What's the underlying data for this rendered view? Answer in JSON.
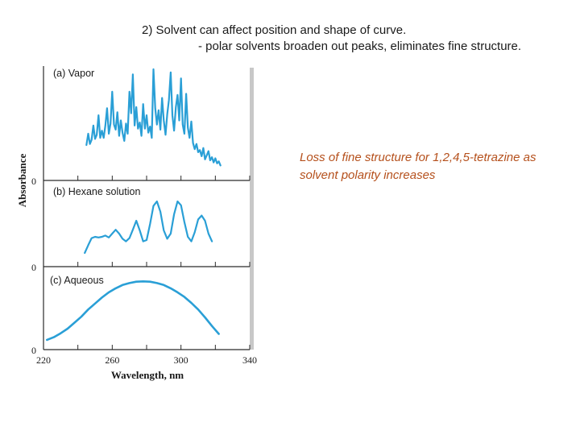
{
  "heading": {
    "line1": "2) Solvent can affect position and shape of curve.",
    "line2": "- polar solvents broaden out peaks, eliminates fine structure."
  },
  "note": "Loss of fine structure for 1,2,4,5-tetrazine as solvent polarity increases",
  "colors": {
    "curve": "#2a9fd6",
    "note": "#b5501c",
    "axis": "#2b2b2b"
  },
  "chart_data": {
    "type": "line",
    "xlabel": "Wavelength, nm",
    "ylabel": "Absorbance",
    "xlim": [
      220,
      340
    ],
    "x_ticks": [
      220,
      260,
      300,
      340
    ],
    "x_minor_ticks": [
      240,
      280,
      320
    ],
    "y_zero_label": "0",
    "series": [
      {
        "name": "(a) Vapor",
        "ylim": [
          0,
          1
        ],
        "points": [
          [
            245,
            0.26
          ],
          [
            246,
            0.37
          ],
          [
            247,
            0.27
          ],
          [
            248,
            0.31
          ],
          [
            249,
            0.45
          ],
          [
            250,
            0.32
          ],
          [
            251,
            0.36
          ],
          [
            252,
            0.55
          ],
          [
            253,
            0.33
          ],
          [
            254,
            0.4
          ],
          [
            255,
            0.33
          ],
          [
            256,
            0.45
          ],
          [
            257,
            0.62
          ],
          [
            258,
            0.37
          ],
          [
            259,
            0.47
          ],
          [
            260,
            0.78
          ],
          [
            261,
            0.46
          ],
          [
            262,
            0.41
          ],
          [
            263,
            0.58
          ],
          [
            264,
            0.35
          ],
          [
            265,
            0.5
          ],
          [
            266,
            0.38
          ],
          [
            267,
            0.3
          ],
          [
            268,
            0.47
          ],
          [
            269,
            0.37
          ],
          [
            270,
            0.78
          ],
          [
            271,
            0.57
          ],
          [
            272,
            0.95
          ],
          [
            273,
            0.45
          ],
          [
            274,
            0.63
          ],
          [
            275,
            0.42
          ],
          [
            276,
            0.48
          ],
          [
            277,
            0.35
          ],
          [
            278,
            0.66
          ],
          [
            279,
            0.42
          ],
          [
            280,
            0.55
          ],
          [
            281,
            0.38
          ],
          [
            282,
            0.44
          ],
          [
            283,
            0.33
          ],
          [
            284,
            1.0
          ],
          [
            285,
            0.62
          ],
          [
            286,
            0.46
          ],
          [
            287,
            0.6
          ],
          [
            288,
            0.41
          ],
          [
            289,
            0.72
          ],
          [
            290,
            0.5
          ],
          [
            291,
            0.36
          ],
          [
            292,
            0.56
          ],
          [
            293,
            0.7
          ],
          [
            294,
            0.97
          ],
          [
            295,
            0.55
          ],
          [
            296,
            0.4
          ],
          [
            297,
            0.63
          ],
          [
            298,
            0.75
          ],
          [
            299,
            0.5
          ],
          [
            300,
            0.91
          ],
          [
            301,
            0.46
          ],
          [
            302,
            0.37
          ],
          [
            303,
            0.76
          ],
          [
            304,
            0.43
          ],
          [
            305,
            0.33
          ],
          [
            306,
            0.49
          ],
          [
            307,
            0.28
          ],
          [
            308,
            0.22
          ],
          [
            309,
            0.27
          ],
          [
            310,
            0.19
          ],
          [
            311,
            0.21
          ],
          [
            312,
            0.15
          ],
          [
            313,
            0.23
          ],
          [
            314,
            0.12
          ],
          [
            315,
            0.16
          ],
          [
            316,
            0.2
          ],
          [
            317,
            0.11
          ],
          [
            318,
            0.14
          ],
          [
            319,
            0.09
          ],
          [
            320,
            0.13
          ],
          [
            321,
            0.08
          ],
          [
            322,
            0.1
          ],
          [
            323,
            0.06
          ]
        ]
      },
      {
        "name": "(b) Hexane solution",
        "ylim": [
          0,
          1
        ],
        "points": [
          [
            244,
            0.1
          ],
          [
            246,
            0.22
          ],
          [
            248,
            0.33
          ],
          [
            250,
            0.35
          ],
          [
            252,
            0.34
          ],
          [
            254,
            0.35
          ],
          [
            256,
            0.37
          ],
          [
            258,
            0.34
          ],
          [
            260,
            0.4
          ],
          [
            262,
            0.46
          ],
          [
            264,
            0.4
          ],
          [
            266,
            0.32
          ],
          [
            268,
            0.28
          ],
          [
            270,
            0.33
          ],
          [
            272,
            0.46
          ],
          [
            274,
            0.6
          ],
          [
            276,
            0.45
          ],
          [
            278,
            0.28
          ],
          [
            280,
            0.3
          ],
          [
            282,
            0.55
          ],
          [
            284,
            0.83
          ],
          [
            286,
            0.9
          ],
          [
            288,
            0.74
          ],
          [
            290,
            0.45
          ],
          [
            292,
            0.32
          ],
          [
            294,
            0.4
          ],
          [
            296,
            0.7
          ],
          [
            298,
            0.9
          ],
          [
            300,
            0.84
          ],
          [
            302,
            0.58
          ],
          [
            304,
            0.35
          ],
          [
            306,
            0.28
          ],
          [
            308,
            0.42
          ],
          [
            310,
            0.62
          ],
          [
            312,
            0.68
          ],
          [
            314,
            0.6
          ],
          [
            316,
            0.4
          ],
          [
            318,
            0.28
          ]
        ]
      },
      {
        "name": "(c) Aqueous",
        "ylim": [
          0,
          1
        ],
        "points": [
          [
            222,
            0.05
          ],
          [
            226,
            0.09
          ],
          [
            230,
            0.15
          ],
          [
            234,
            0.22
          ],
          [
            238,
            0.31
          ],
          [
            242,
            0.4
          ],
          [
            246,
            0.51
          ],
          [
            250,
            0.6
          ],
          [
            254,
            0.69
          ],
          [
            258,
            0.77
          ],
          [
            262,
            0.83
          ],
          [
            266,
            0.88
          ],
          [
            270,
            0.91
          ],
          [
            274,
            0.93
          ],
          [
            278,
            0.935
          ],
          [
            282,
            0.93
          ],
          [
            286,
            0.91
          ],
          [
            290,
            0.88
          ],
          [
            294,
            0.83
          ],
          [
            298,
            0.77
          ],
          [
            302,
            0.7
          ],
          [
            306,
            0.61
          ],
          [
            310,
            0.51
          ],
          [
            314,
            0.39
          ],
          [
            318,
            0.26
          ],
          [
            322,
            0.14
          ]
        ]
      }
    ]
  }
}
